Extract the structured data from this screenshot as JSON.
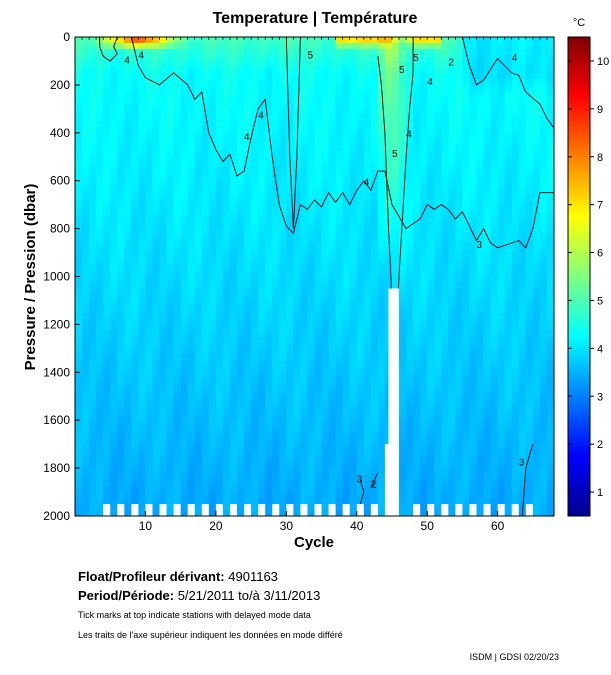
{
  "chart_data": {
    "type": "heatmap",
    "title": "Temperature | Température",
    "xlabel": "Cycle",
    "ylabel": "Pressure / Pression (dbar)",
    "xlim": [
      0,
      68
    ],
    "ylim": [
      2000,
      0
    ],
    "x_ticks": [
      10,
      20,
      30,
      40,
      50,
      60
    ],
    "y_ticks": [
      0,
      200,
      400,
      600,
      800,
      1000,
      1200,
      1400,
      1600,
      1800,
      2000
    ],
    "colorbar": {
      "unit": "°C",
      "range": [
        0.5,
        10.5
      ],
      "ticks": [
        1,
        2,
        3,
        4,
        5,
        6,
        7,
        8,
        9,
        10
      ],
      "colors": [
        "#00008f",
        "#0000ff",
        "#0080ff",
        "#00ffff",
        "#80ff80",
        "#ffff00",
        "#ff8000",
        "#ff0000",
        "#800000"
      ]
    },
    "contour_levels": [
      2,
      3,
      4,
      5,
      6,
      7,
      8,
      9,
      10
    ],
    "contour_labels": [
      "4",
      "4",
      "4",
      "4",
      "4",
      "4",
      "5",
      "5",
      "5",
      "5",
      "4",
      "4",
      "3",
      "3",
      "3",
      "2",
      "2"
    ]
  },
  "meta": {
    "float_label": "Float/Profileur dérivant:",
    "float_value": "4901163",
    "period_label": "Period/Période:",
    "period_value": "5/21/2011  to/à  3/11/2013",
    "note_en": "Tick marks at top indicate stations with delayed mode data",
    "note_fr": "Les traits de l'axe supérieur indiquent les données en mode différé",
    "footer": "ISDM | GDSI  02/20/23"
  }
}
